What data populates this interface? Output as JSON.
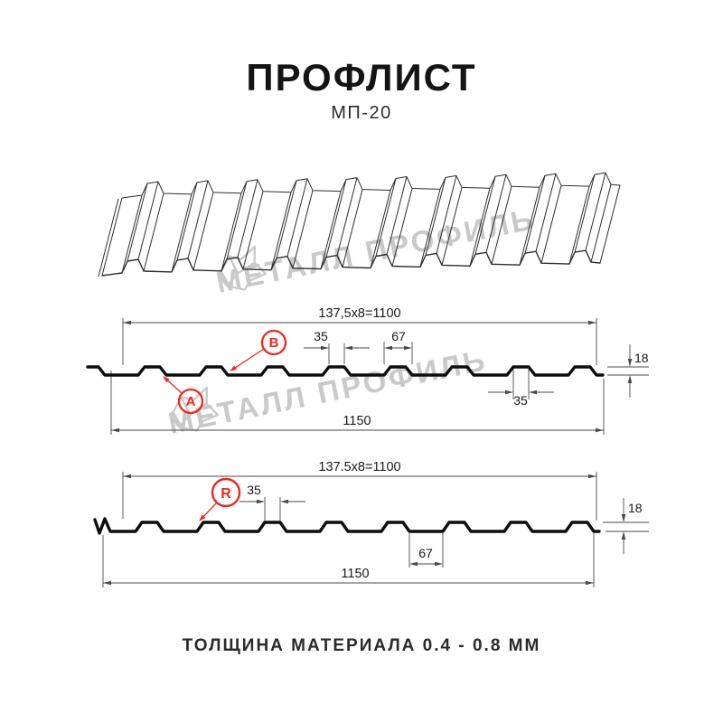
{
  "header": {
    "title": "ПРОФЛИСТ",
    "subtitle": "МП-20"
  },
  "watermark": {
    "text": "МЕТАЛЛ ПРОФИЛЬ",
    "color": "#c9c9c9"
  },
  "footer": {
    "text": "ТОЛЩИНА МАТЕРИАЛА 0.4 - 0.8 ММ"
  },
  "colors": {
    "accent_red": "#ea2a22",
    "profile_line": "#0d0d0d",
    "dimension_line": "#4a4a4a",
    "watermark_gray": "#c9c9c9"
  },
  "profile_front": {
    "point_labels": {
      "a": "A",
      "b": "B"
    },
    "dims": {
      "pitch_total": "137,5x8=1100",
      "crest_top_width": "35",
      "rib_base_width": "67",
      "rib_bottom_width": "35",
      "rib_height": "18",
      "full_width": "1150"
    }
  },
  "profile_reverse": {
    "point_labels": {
      "r": "R"
    },
    "dims": {
      "pitch_total": "137.5x8=1100",
      "crest_top_width": "35",
      "valley_width": "67",
      "rib_height": "18",
      "full_width": "1150"
    }
  }
}
